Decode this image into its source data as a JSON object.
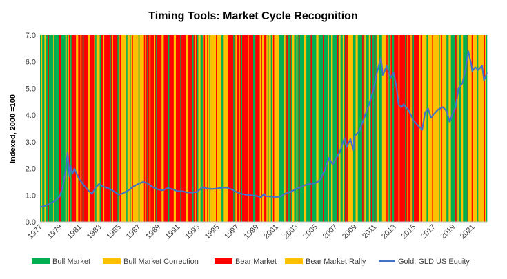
{
  "chart_data": {
    "type": "line",
    "title": "Timing Tools: Market Cycle Recognition",
    "ylabel": "Indexed, 2000 =100",
    "xlabel": "",
    "ylim": [
      0,
      7
    ],
    "y_ticks": [
      "0.0",
      "1.0",
      "2.0",
      "3.0",
      "4.0",
      "5.0",
      "6.0",
      "7.0"
    ],
    "xlim": [
      1977,
      2022.5
    ],
    "x_ticks": [
      "1977",
      "1979",
      "1981",
      "1983",
      "1985",
      "1987",
      "1989",
      "1991",
      "1993",
      "1995",
      "1997",
      "1999",
      "2001",
      "2003",
      "2005",
      "2007",
      "2009",
      "2011",
      "2013",
      "2015",
      "2017",
      "2019",
      "2021"
    ],
    "grid": false,
    "legend_position": "bottom",
    "regime_colors": {
      "Bull Market": "#00B050",
      "Bull Market Correction": "#FFC000",
      "Bear Market": "#FF0000",
      "Bear Market Rally": "#FFC000"
    },
    "legend": [
      {
        "label": "Bull Market",
        "color": "#00B050",
        "kind": "box"
      },
      {
        "label": "Bull Market Correction",
        "color": "#FFC000",
        "kind": "box"
      },
      {
        "label": "Bear Market",
        "color": "#FF0000",
        "kind": "box"
      },
      {
        "label": "Bear Market Rally",
        "color": "#FFC000",
        "kind": "box"
      },
      {
        "label": "Gold: GLD US Equity",
        "color": "#4472C4",
        "kind": "line"
      }
    ],
    "regime_periods": [
      {
        "start": 1977.0,
        "end": 1979.6,
        "regime": "Bull Market"
      },
      {
        "start": 1979.6,
        "end": 1980.1,
        "regime": "Bull Market Correction"
      },
      {
        "start": 1980.1,
        "end": 1982.4,
        "regime": "Bear Market"
      },
      {
        "start": 1982.4,
        "end": 1983.2,
        "regime": "Bear Market Rally"
      },
      {
        "start": 1983.2,
        "end": 1985.0,
        "regime": "Bear Market"
      },
      {
        "start": 1985.0,
        "end": 1987.8,
        "regime": "Bear Market Rally"
      },
      {
        "start": 1987.8,
        "end": 1993.0,
        "regime": "Bear Market"
      },
      {
        "start": 1993.0,
        "end": 1996.0,
        "regime": "Bear Market Rally"
      },
      {
        "start": 1996.0,
        "end": 1999.6,
        "regime": "Bear Market"
      },
      {
        "start": 1999.6,
        "end": 2001.3,
        "regime": "Bear Market Rally"
      },
      {
        "start": 2001.3,
        "end": 2006.3,
        "regime": "Bull Market"
      },
      {
        "start": 2006.3,
        "end": 2006.8,
        "regime": "Bull Market Correction"
      },
      {
        "start": 2006.8,
        "end": 2008.2,
        "regime": "Bull Market"
      },
      {
        "start": 2008.2,
        "end": 2008.9,
        "regime": "Bull Market Correction"
      },
      {
        "start": 2008.9,
        "end": 2011.7,
        "regime": "Bull Market"
      },
      {
        "start": 2011.7,
        "end": 2012.7,
        "regime": "Bull Market Correction"
      },
      {
        "start": 2012.7,
        "end": 2015.9,
        "regime": "Bear Market"
      },
      {
        "start": 2015.9,
        "end": 2018.6,
        "regime": "Bear Market Rally"
      },
      {
        "start": 2018.6,
        "end": 2020.6,
        "regime": "Bull Market"
      },
      {
        "start": 2020.6,
        "end": 2022.5,
        "regime": "Bull Market Correction"
      }
    ],
    "series": [
      {
        "name": "Gold: GLD US Equity",
        "color": "#4472C4",
        "x": [
          1977.0,
          1977.5,
          1978.0,
          1978.5,
          1979.0,
          1979.3,
          1979.6,
          1979.8,
          1980.0,
          1980.1,
          1980.3,
          1980.5,
          1980.8,
          1981.0,
          1981.5,
          1982.0,
          1982.3,
          1982.6,
          1983.0,
          1983.3,
          1983.6,
          1984.0,
          1984.5,
          1985.0,
          1985.3,
          1985.6,
          1986.0,
          1986.5,
          1987.0,
          1987.5,
          1987.9,
          1988.5,
          1989.0,
          1989.5,
          1990.0,
          1990.5,
          1991.0,
          1991.5,
          1992.0,
          1992.5,
          1993.0,
          1993.5,
          1994.0,
          1994.5,
          1995.0,
          1995.5,
          1996.0,
          1996.5,
          1997.0,
          1997.5,
          1998.0,
          1998.5,
          1999.0,
          1999.5,
          1999.8,
          2000.0,
          2000.5,
          2001.0,
          2001.5,
          2002.0,
          2002.5,
          2003.0,
          2003.5,
          2004.0,
          2004.5,
          2005.0,
          2005.5,
          2006.0,
          2006.4,
          2006.8,
          2007.0,
          2007.5,
          2008.0,
          2008.2,
          2008.6,
          2008.9,
          2009.0,
          2009.5,
          2010.0,
          2010.5,
          2011.0,
          2011.3,
          2011.7,
          2011.9,
          2012.3,
          2012.7,
          2013.0,
          2013.3,
          2013.5,
          2013.8,
          2014.0,
          2014.5,
          2015.0,
          2015.5,
          2015.9,
          2016.2,
          2016.5,
          2016.8,
          2017.0,
          2017.5,
          2018.0,
          2018.4,
          2018.7,
          2019.0,
          2019.3,
          2019.6,
          2020.0,
          2020.3,
          2020.6,
          2020.9,
          2021.0,
          2021.3,
          2021.6,
          2022.0,
          2022.2,
          2022.5
        ],
        "y": [
          0.55,
          0.6,
          0.68,
          0.78,
          0.95,
          1.3,
          1.9,
          2.6,
          1.7,
          2.1,
          1.8,
          2.0,
          1.75,
          1.6,
          1.35,
          1.15,
          1.05,
          1.25,
          1.42,
          1.35,
          1.3,
          1.25,
          1.15,
          1.02,
          1.05,
          1.1,
          1.18,
          1.32,
          1.42,
          1.5,
          1.45,
          1.3,
          1.22,
          1.18,
          1.27,
          1.22,
          1.15,
          1.15,
          1.1,
          1.1,
          1.12,
          1.3,
          1.25,
          1.23,
          1.25,
          1.28,
          1.28,
          1.22,
          1.12,
          1.05,
          1.02,
          1.0,
          0.98,
          0.92,
          1.05,
          0.96,
          0.95,
          0.93,
          0.95,
          1.07,
          1.12,
          1.22,
          1.3,
          1.38,
          1.42,
          1.45,
          1.55,
          1.95,
          2.4,
          2.15,
          2.3,
          2.6,
          3.15,
          2.8,
          3.1,
          2.7,
          3.2,
          3.4,
          3.9,
          4.4,
          5.05,
          5.6,
          6.15,
          5.5,
          5.85,
          5.4,
          5.6,
          5.0,
          4.4,
          4.3,
          4.4,
          4.2,
          3.8,
          3.6,
          3.45,
          4.1,
          4.25,
          3.9,
          4.0,
          4.2,
          4.3,
          4.15,
          3.75,
          4.05,
          4.3,
          5.0,
          5.2,
          5.7,
          6.4,
          5.9,
          5.65,
          5.8,
          5.7,
          5.85,
          5.3,
          5.6
        ]
      }
    ]
  }
}
